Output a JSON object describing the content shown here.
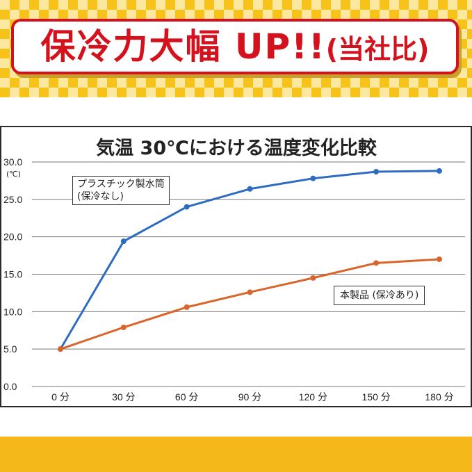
{
  "banner": {
    "text": "保冷力大幅 UP!!",
    "subtext": "(当社比)",
    "colors": {
      "red": "#d3121d",
      "yellow": "#f7c21a"
    }
  },
  "chart_data": {
    "type": "line",
    "title": "気温 30℃における温度変化比較",
    "ylabel": "(℃)",
    "categories": [
      "0 分",
      "30 分",
      "60 分",
      "90 分",
      "120 分",
      "150 分",
      "180 分"
    ],
    "yticks": [
      "30.0",
      "25.0",
      "20.0",
      "15.0",
      "10.0",
      "5.0",
      "0.0"
    ],
    "ylim": [
      0,
      30
    ],
    "grid": true,
    "series": [
      {
        "name": "プラスチック製水筒",
        "note": "(保冷なし)",
        "color": "#2e6cc2",
        "values": [
          5.0,
          19.4,
          24.0,
          26.4,
          27.8,
          28.7,
          28.8
        ]
      },
      {
        "name": "本製品",
        "note": "(保冷あり)",
        "color": "#d9652a",
        "values": [
          5.0,
          7.9,
          10.6,
          12.6,
          14.5,
          16.5,
          17.0
        ]
      }
    ]
  }
}
